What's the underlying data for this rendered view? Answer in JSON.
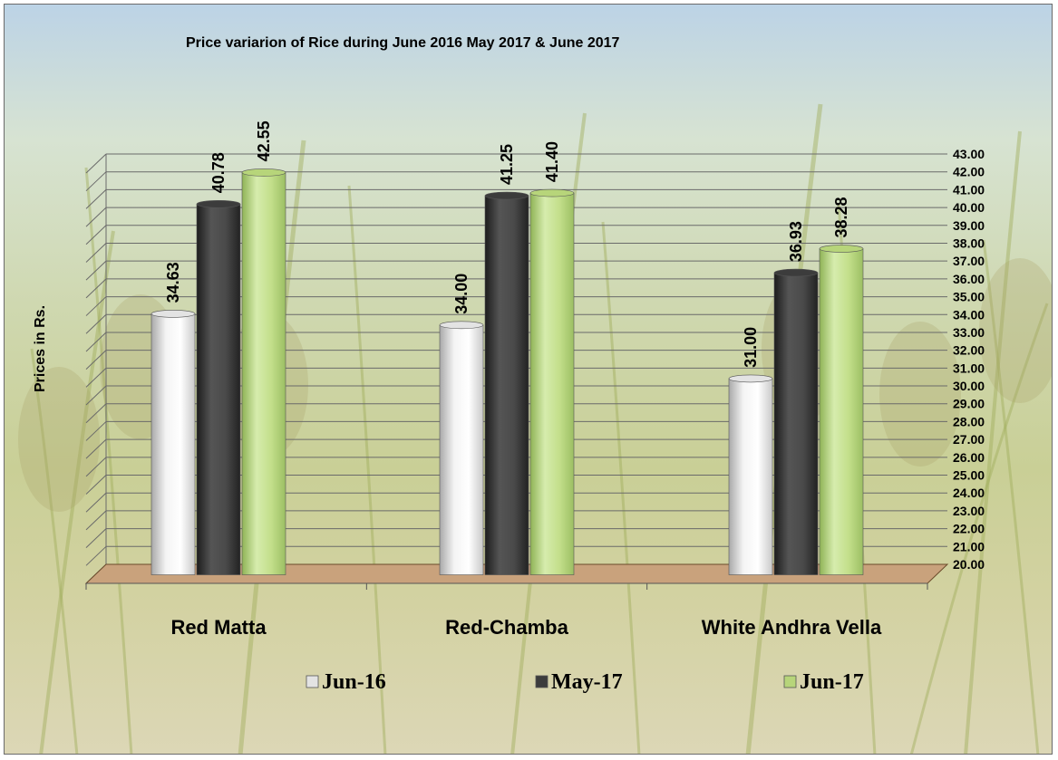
{
  "chart_data": {
    "type": "bar",
    "title": "Price variarion of Rice during  June  2016  May  2017 &  June 2017",
    "ylabel": "Prices in Rs.",
    "xlabel": "",
    "categories": [
      "Red Matta",
      "Red-Chamba",
      "White Andhra Vella"
    ],
    "series": [
      {
        "name": "Jun-16",
        "values": [
          34.63,
          34.0,
          31.0
        ],
        "color": "#e3e3e3"
      },
      {
        "name": "May-17",
        "values": [
          40.78,
          41.25,
          36.93
        ],
        "color": "#3c3c3c"
      },
      {
        "name": "Jun-17",
        "values": [
          42.55,
          41.4,
          38.28
        ],
        "color": "#b7d57a"
      }
    ],
    "ylim": [
      20,
      43
    ],
    "y_ticks": [
      "20.00",
      "21.00",
      "22.00",
      "23.00",
      "24.00",
      "25.00",
      "26.00",
      "27.00",
      "28.00",
      "29.00",
      "30.00",
      "31.00",
      "32.00",
      "33.00",
      "34.00",
      "35.00",
      "36.00",
      "37.00",
      "38.00",
      "39.00",
      "40.00",
      "41.00",
      "42.00",
      "43.00"
    ],
    "y_axis_side": "right",
    "grid": true,
    "legend_position": "bottom",
    "style": "3d-columns",
    "floor_color": "#c9a27c"
  }
}
